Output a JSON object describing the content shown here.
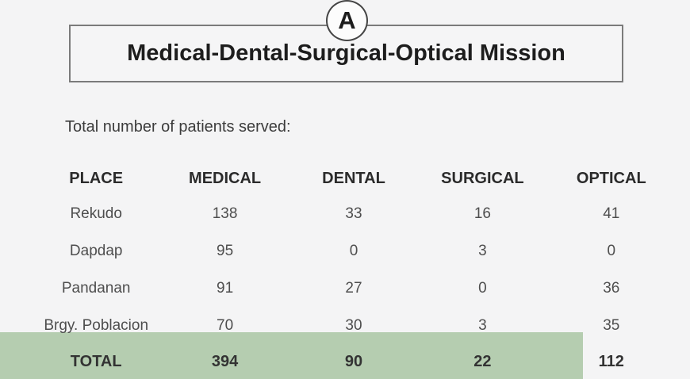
{
  "page": {
    "background": "#f4f4f5",
    "highlight_green": "#b5cdb0",
    "panel_label": "A",
    "title": "Medical-Dental-Surgical-Optical Mission",
    "subtitle": "Total number of patients served:"
  },
  "chart_data": {
    "type": "table",
    "title": "Medical-Dental-Surgical-Optical Mission",
    "panel_label": "A",
    "caption": "Total number of patients served:",
    "columns": [
      "PLACE",
      "MEDICAL",
      "DENTAL",
      "SURGICAL",
      "OPTICAL"
    ],
    "rows": [
      [
        "Rekudo",
        138,
        33,
        16,
        41
      ],
      [
        "Dapdap",
        95,
        0,
        3,
        0
      ],
      [
        "Pandanan",
        91,
        27,
        0,
        36
      ],
      [
        "Brgy. Poblacion",
        70,
        30,
        3,
        35
      ],
      [
        "TOTAL",
        394,
        90,
        22,
        112
      ]
    ],
    "highlight_row": "TOTAL",
    "highlight_color": "#b5cdb0"
  }
}
